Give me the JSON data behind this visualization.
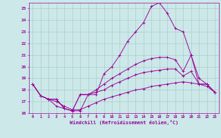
{
  "xlabel": "Windchill (Refroidissement éolien,°C)",
  "background_color": "#cce8e8",
  "grid_color": "#aacccc",
  "line_color": "#990099",
  "x_ticks": [
    0,
    1,
    2,
    3,
    4,
    5,
    6,
    7,
    8,
    9,
    10,
    11,
    12,
    13,
    14,
    15,
    16,
    17,
    18,
    19,
    20,
    21,
    22,
    23
  ],
  "ylim": [
    16,
    25.5
  ],
  "xlim": [
    -0.5,
    23.5
  ],
  "yticks": [
    16,
    17,
    18,
    19,
    20,
    21,
    22,
    23,
    24,
    25
  ],
  "line1_x": [
    0,
    1,
    2,
    3,
    4,
    5,
    6,
    7,
    8,
    9,
    10,
    11,
    12,
    13,
    14,
    15,
    16,
    17,
    18,
    19,
    20,
    21,
    22,
    23
  ],
  "line1_y": [
    18.5,
    17.5,
    17.2,
    16.6,
    16.4,
    16.2,
    16.2,
    17.6,
    17.6,
    19.4,
    20.0,
    21.0,
    22.2,
    23.0,
    23.8,
    25.2,
    25.5,
    24.6,
    23.3,
    23.0,
    21.0,
    18.5,
    18.5,
    17.8
  ],
  "line2_x": [
    0,
    1,
    2,
    3,
    4,
    5,
    6,
    7,
    8,
    9,
    10,
    11,
    12,
    13,
    14,
    15,
    16,
    17,
    18,
    19,
    20,
    21,
    22,
    23
  ],
  "line2_y": [
    18.5,
    17.5,
    17.2,
    17.2,
    16.4,
    16.2,
    17.6,
    17.6,
    18.0,
    18.5,
    19.0,
    19.4,
    19.8,
    20.2,
    20.5,
    20.7,
    20.8,
    20.8,
    20.6,
    19.6,
    21.0,
    19.0,
    18.5,
    17.8
  ],
  "line3_x": [
    0,
    1,
    2,
    3,
    4,
    5,
    6,
    7,
    8,
    9,
    10,
    11,
    12,
    13,
    14,
    15,
    16,
    17,
    18,
    19,
    20,
    21,
    22,
    23
  ],
  "line3_y": [
    18.5,
    17.5,
    17.2,
    17.2,
    16.4,
    16.2,
    17.6,
    17.6,
    17.8,
    18.0,
    18.4,
    18.7,
    19.0,
    19.3,
    19.5,
    19.6,
    19.7,
    19.8,
    19.8,
    19.2,
    19.6,
    18.5,
    18.5,
    17.8
  ],
  "line4_x": [
    0,
    1,
    2,
    3,
    4,
    5,
    6,
    7,
    8,
    9,
    10,
    11,
    12,
    13,
    14,
    15,
    16,
    17,
    18,
    19,
    20,
    21,
    22,
    23
  ],
  "line4_y": [
    18.5,
    17.5,
    17.2,
    17.0,
    16.6,
    16.3,
    16.3,
    16.6,
    16.9,
    17.2,
    17.4,
    17.6,
    17.8,
    18.0,
    18.1,
    18.3,
    18.4,
    18.5,
    18.6,
    18.7,
    18.6,
    18.5,
    18.3,
    17.8
  ]
}
